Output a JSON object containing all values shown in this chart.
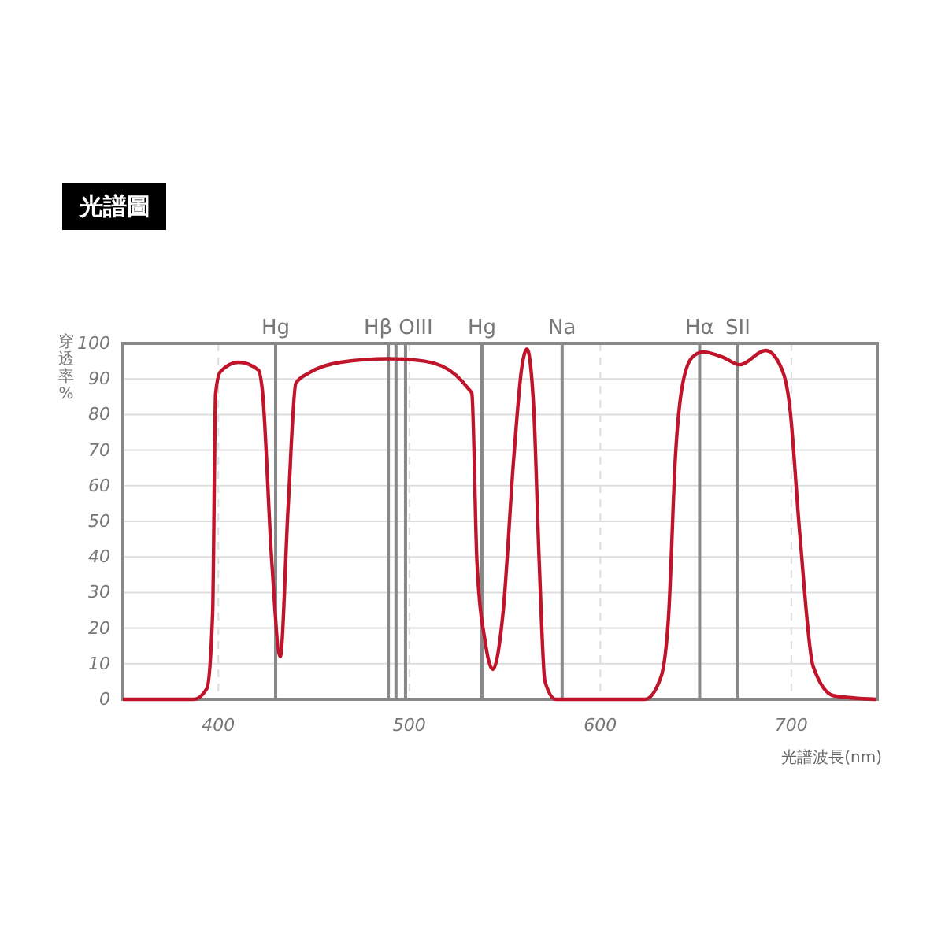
{
  "chart_data": {
    "type": "line",
    "title": "光譜圖",
    "xlabel": "光譜波長(nm)",
    "ylabel": "穿透率%",
    "xlim": [
      350,
      745
    ],
    "xticks": [
      400,
      500,
      600,
      700
    ],
    "ylim": [
      0,
      100
    ],
    "yticks": [
      0,
      10,
      20,
      30,
      40,
      50,
      60,
      70,
      80,
      90,
      100
    ],
    "grid": true,
    "marker": "none",
    "line_style": "solid",
    "ref_lines": [
      {
        "axis": "x",
        "value": 430,
        "label": "Hg",
        "color": "#888888"
      },
      {
        "axis": "x",
        "value": 489,
        "label": "Hβ",
        "color": "#888888"
      },
      {
        "axis": "x",
        "value": 493,
        "label": null,
        "color": "#888888"
      },
      {
        "axis": "x",
        "value": 498,
        "label": "OIII",
        "color": "#888888"
      },
      {
        "axis": "x",
        "value": 538,
        "label": "Hg",
        "color": "#888888"
      },
      {
        "axis": "x",
        "value": 580,
        "label": "Na",
        "color": "#888888"
      },
      {
        "axis": "x",
        "value": 652,
        "label": "Hα",
        "color": "#888888"
      },
      {
        "axis": "x",
        "value": 672,
        "label": "SII",
        "color": "#888888"
      }
    ],
    "series": [
      {
        "color": "#c0142a",
        "x": [
          350,
          387,
          394,
          397,
          398.6,
          401,
          410.5,
          421,
          423,
          428,
          432.4,
          436.5,
          440.6,
          447.5,
          464,
          489,
          508,
          524.5,
          531.3,
          532.7,
          535.4,
          539.6,
          543.7,
          549,
          554.7,
          558.9,
          561.6,
          565,
          568,
          571,
          576.7,
          623.4,
          631.7,
          635.8,
          639.3,
          642.6,
          648,
          653.7,
          664.6,
          672.9,
          686.6,
          693.5,
          699,
          704.5,
          711.4,
          722.3,
          744.4
        ],
        "values": [
          0,
          0,
          3,
          24,
          86,
          92,
          94.7,
          92.5,
          87,
          38.6,
          12,
          53.5,
          88.8,
          91.7,
          94.7,
          95.7,
          95,
          91,
          87,
          86,
          38.6,
          16.5,
          8.4,
          24,
          68,
          93.3,
          98.4,
          83,
          38.6,
          5,
          0,
          0,
          6.2,
          24,
          68,
          87,
          96,
          97.6,
          96,
          94,
          98,
          94.5,
          83,
          46,
          9.3,
          1,
          0
        ]
      }
    ]
  }
}
